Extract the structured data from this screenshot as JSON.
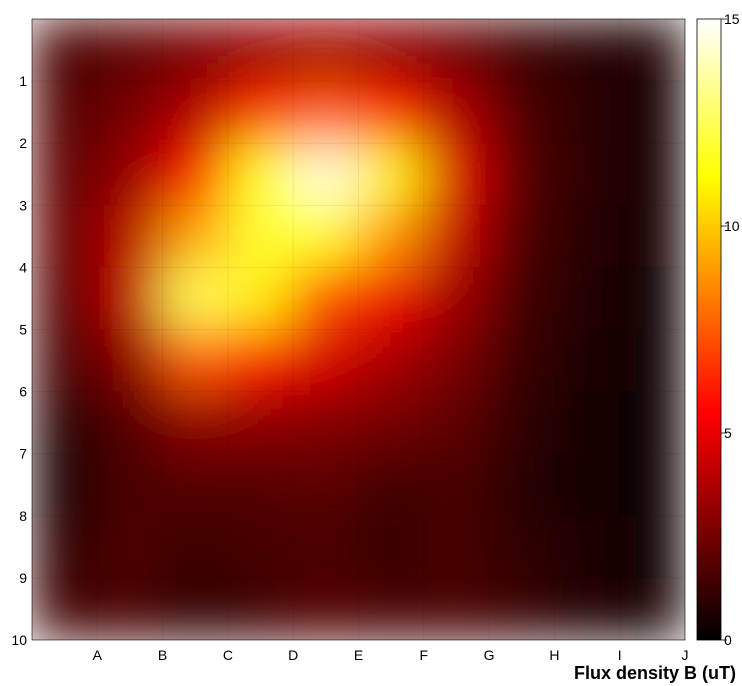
{
  "chart_data": {
    "type": "heatmap",
    "title": "",
    "x_categories": [
      "A",
      "B",
      "C",
      "D",
      "E",
      "F",
      "G",
      "H",
      "I",
      "J"
    ],
    "y_categories": [
      "1",
      "2",
      "3",
      "4",
      "5",
      "6",
      "7",
      "8",
      "9",
      "10"
    ],
    "y_tick_labels": [
      "1",
      "2",
      "3",
      "4",
      "5",
      "6",
      "7",
      "8",
      "9",
      "10"
    ],
    "colorbar": {
      "label": "Flux density B (uT)",
      "range": [
        0,
        15
      ],
      "ticks": [
        "0",
        "5",
        "10",
        "15"
      ],
      "colormap": "hot"
    },
    "values": [
      [
        1.5,
        2.0,
        2.6,
        3.2,
        3.5,
        3.0,
        2.3,
        1.3,
        0.8,
        0.6
      ],
      [
        1.8,
        2.5,
        3.8,
        6.5,
        7.5,
        6.2,
        3.8,
        1.6,
        0.9,
        0.5
      ],
      [
        2.0,
        3.2,
        5.8,
        11.5,
        14.5,
        11.0,
        4.8,
        1.8,
        0.9,
        0.4
      ],
      [
        2.2,
        4.0,
        9.2,
        12.0,
        11.5,
        8.8,
        4.2,
        1.6,
        0.8,
        0.4
      ],
      [
        1.8,
        4.2,
        12.5,
        10.8,
        7.0,
        5.2,
        3.4,
        1.4,
        0.7,
        0.3
      ],
      [
        1.5,
        3.0,
        7.5,
        6.0,
        4.6,
        3.6,
        2.6,
        1.2,
        0.6,
        0.3
      ],
      [
        0.8,
        1.8,
        3.0,
        3.0,
        2.8,
        2.5,
        2.0,
        1.0,
        0.5,
        0.3
      ],
      [
        0.5,
        1.6,
        1.8,
        1.8,
        2.0,
        1.4,
        1.6,
        0.8,
        0.5,
        0.3
      ],
      [
        1.0,
        1.7,
        1.3,
        1.5,
        1.6,
        1.2,
        1.5,
        1.0,
        0.6,
        0.3
      ],
      [
        1.4,
        1.6,
        1.0,
        1.4,
        1.8,
        1.5,
        1.6,
        1.2,
        0.7,
        0.4
      ]
    ]
  }
}
